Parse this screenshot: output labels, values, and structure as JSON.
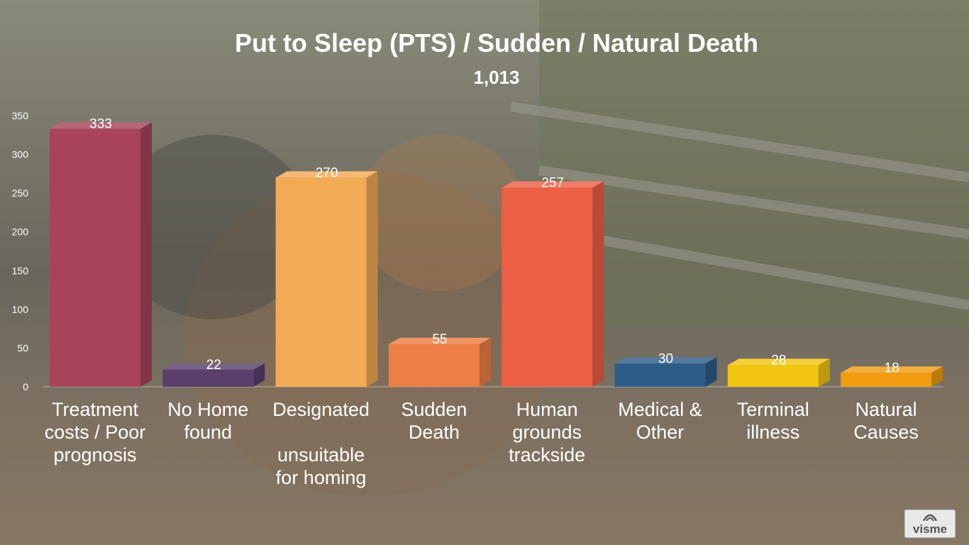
{
  "chart_data": {
    "type": "bar",
    "title": "Put to Sleep (PTS) / Sudden / Natural Death",
    "subtitle": "1,013",
    "xlabel": "",
    "ylabel": "",
    "ylim": [
      0,
      350
    ],
    "y_ticks": [
      0,
      50,
      100,
      150,
      200,
      250,
      300,
      350
    ],
    "categories": [
      "Treatment costs / Poor prognosis",
      "No Home found",
      "Designated\n\nunsuitable for homing",
      "Sudden Death",
      "Human grounds trackside",
      "Medical & Other",
      "Terminal illness",
      "Natural Causes"
    ],
    "values": [
      333,
      22,
      270,
      55,
      257,
      30,
      28,
      18
    ],
    "data_labels": [
      "333",
      "22",
      "270",
      "55",
      "257",
      "30",
      "28",
      "18"
    ],
    "colors": [
      "#a7445a",
      "#5a3f6b",
      "#f3aa55",
      "#ed7f45",
      "#ec5f45",
      "#2d5d86",
      "#f1c510",
      "#f29c11"
    ],
    "grid": false,
    "legend": "none"
  },
  "watermark": "visme"
}
